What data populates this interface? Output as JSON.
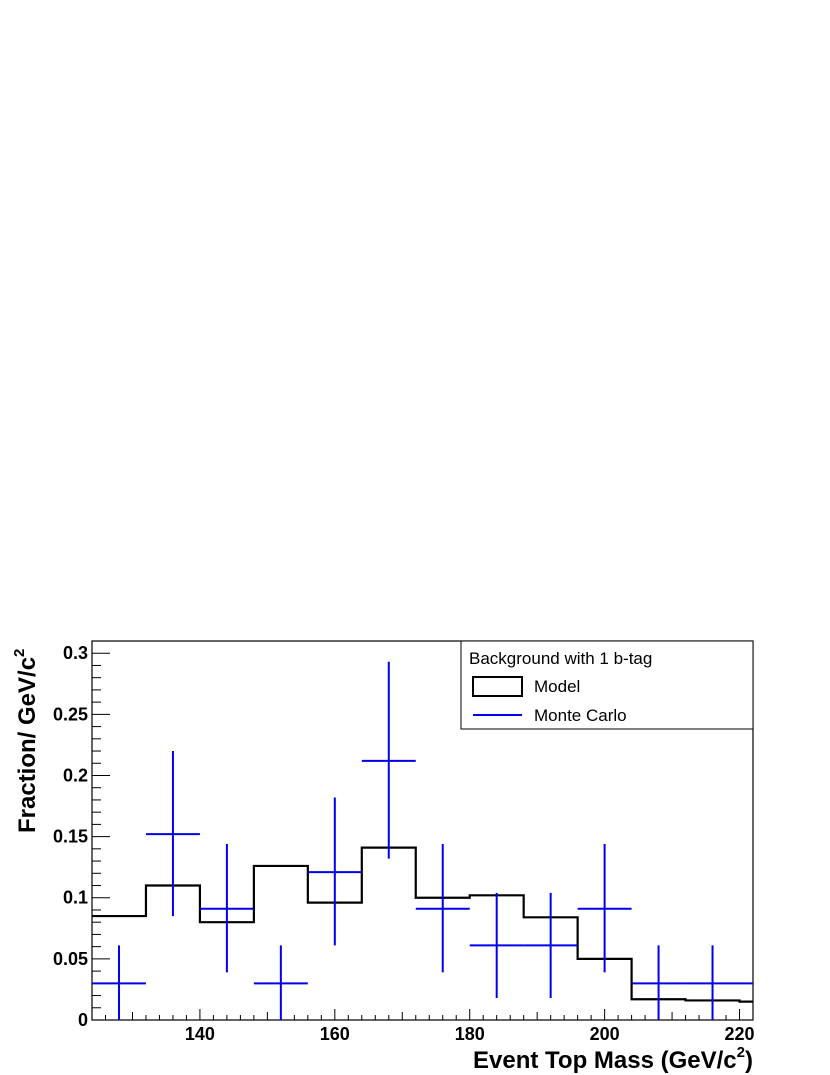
{
  "chart_data": {
    "type": "histogram",
    "title": "",
    "xlabel": {
      "main": "Event Top Mass (GeV/c",
      "sup": "2",
      "close": ")"
    },
    "ylabel": {
      "main": "Fraction/ GeV/c",
      "sup": "2"
    },
    "xlim": [
      124,
      222
    ],
    "ylim": [
      0,
      0.31
    ],
    "x_ticks": [
      "140",
      "160",
      "180",
      "200",
      "220"
    ],
    "y_ticks": [
      "0",
      "0.05",
      "0.1",
      "0.15",
      "0.2",
      "0.25",
      "0.3"
    ],
    "legend": {
      "position": "top-right",
      "header": "Background with 1 b-tag",
      "entries": [
        {
          "label": "Model",
          "style": "box",
          "color": "#000000"
        },
        {
          "label": "Monte Carlo",
          "style": "line",
          "color": "#0000ee"
        }
      ]
    },
    "series": [
      {
        "name": "Model",
        "style": "step",
        "color": "#000000",
        "bin_edges": [
          124,
          132,
          140,
          148,
          156,
          164,
          172,
          180,
          188,
          196,
          204,
          212,
          220,
          222
        ],
        "values": [
          0.085,
          0.11,
          0.08,
          0.126,
          0.096,
          0.141,
          0.1,
          0.102,
          0.084,
          0.05,
          0.017,
          0.016,
          0.015
        ]
      },
      {
        "name": "Monte Carlo",
        "style": "errorbar",
        "color": "#0000ee",
        "points": [
          {
            "x": 128,
            "xlo": 124,
            "xhi": 132,
            "y": 0.03,
            "ylo": 0.0,
            "yhi": 0.061
          },
          {
            "x": 136,
            "xlo": 132,
            "xhi": 140,
            "y": 0.152,
            "ylo": 0.085,
            "yhi": 0.22
          },
          {
            "x": 144,
            "xlo": 140,
            "xhi": 148,
            "y": 0.091,
            "ylo": 0.039,
            "yhi": 0.144
          },
          {
            "x": 152,
            "xlo": 148,
            "xhi": 156,
            "y": 0.03,
            "ylo": 0.0,
            "yhi": 0.061
          },
          {
            "x": 160,
            "xlo": 156,
            "xhi": 164,
            "y": 0.121,
            "ylo": 0.061,
            "yhi": 0.182
          },
          {
            "x": 168,
            "xlo": 164,
            "xhi": 172,
            "y": 0.212,
            "ylo": 0.132,
            "yhi": 0.293
          },
          {
            "x": 176,
            "xlo": 172,
            "xhi": 180,
            "y": 0.091,
            "ylo": 0.039,
            "yhi": 0.144
          },
          {
            "x": 184,
            "xlo": 180,
            "xhi": 188,
            "y": 0.061,
            "ylo": 0.018,
            "yhi": 0.104
          },
          {
            "x": 192,
            "xlo": 188,
            "xhi": 196,
            "y": 0.061,
            "ylo": 0.018,
            "yhi": 0.104
          },
          {
            "x": 200,
            "xlo": 196,
            "xhi": 204,
            "y": 0.091,
            "ylo": 0.039,
            "yhi": 0.144
          },
          {
            "x": 208,
            "xlo": 204,
            "xhi": 212,
            "y": 0.03,
            "ylo": 0.0,
            "yhi": 0.061
          },
          {
            "x": 216,
            "xlo": 212,
            "xhi": 222,
            "y": 0.03,
            "ylo": 0.0,
            "yhi": 0.061
          }
        ]
      }
    ]
  }
}
